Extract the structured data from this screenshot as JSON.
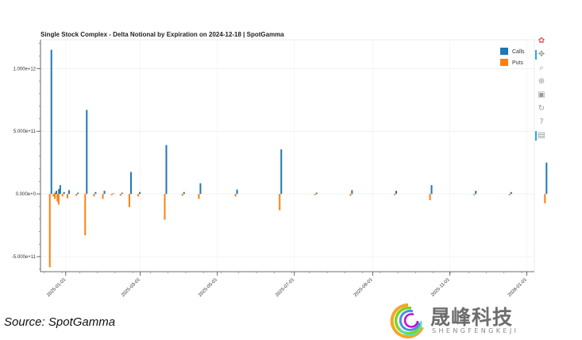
{
  "chart_data": {
    "type": "bar",
    "title": "Single Stock Complex - Delta Notional by Expiration on 2024-12-18 | SpotGamma",
    "xlabel": "",
    "ylabel": "",
    "ylim": [
      -620000000000,
      1230000000000
    ],
    "y_ticks": [
      -500000000000,
      0,
      500000000000,
      1000000000000
    ],
    "y_tick_labels": [
      "-5.000e+11",
      "0.000e+0",
      "5.000e+11",
      "1.000e+12"
    ],
    "x_range": [
      "2024-12-12",
      "2026-01-07"
    ],
    "x_ticks": [
      "2025-01-01",
      "2025-03-01",
      "2025-05-01",
      "2025-07-01",
      "2025-09-01",
      "2025-11-01",
      "2026-01-01"
    ],
    "grid": true,
    "legend_position": "top-right",
    "series": [
      {
        "name": "Calls",
        "color": "#1f77b4",
        "points": [
          {
            "x": "2024-12-20",
            "y": 1150000000000
          },
          {
            "x": "2024-12-23",
            "y": 10000000000
          },
          {
            "x": "2024-12-24",
            "y": 25000000000
          },
          {
            "x": "2024-12-26",
            "y": 40000000000
          },
          {
            "x": "2024-12-27",
            "y": 70000000000
          },
          {
            "x": "2024-12-30",
            "y": 15000000000
          },
          {
            "x": "2025-01-03",
            "y": 30000000000
          },
          {
            "x": "2025-01-10",
            "y": 10000000000
          },
          {
            "x": "2025-01-17",
            "y": 670000000000
          },
          {
            "x": "2025-01-24",
            "y": 15000000000
          },
          {
            "x": "2025-01-31",
            "y": 25000000000
          },
          {
            "x": "2025-02-07",
            "y": 5000000000
          },
          {
            "x": "2025-02-14",
            "y": 10000000000
          },
          {
            "x": "2025-02-21",
            "y": 175000000000
          },
          {
            "x": "2025-02-28",
            "y": 15000000000
          },
          {
            "x": "2025-03-21",
            "y": 390000000000
          },
          {
            "x": "2025-04-04",
            "y": 15000000000
          },
          {
            "x": "2025-04-17",
            "y": 85000000000
          },
          {
            "x": "2025-05-16",
            "y": 35000000000
          },
          {
            "x": "2025-06-20",
            "y": 355000000000
          },
          {
            "x": "2025-07-18",
            "y": 10000000000
          },
          {
            "x": "2025-08-15",
            "y": 30000000000
          },
          {
            "x": "2025-09-19",
            "y": 25000000000
          },
          {
            "x": "2025-10-17",
            "y": 70000000000
          },
          {
            "x": "2025-11-21",
            "y": 25000000000
          },
          {
            "x": "2025-12-19",
            "y": 15000000000
          },
          {
            "x": "2026-01-16",
            "y": 250000000000
          }
        ]
      },
      {
        "name": "Puts",
        "color": "#ff7f0e",
        "points": [
          {
            "x": "2024-12-20",
            "y": -585000000000
          },
          {
            "x": "2024-12-23",
            "y": -20000000000
          },
          {
            "x": "2024-12-24",
            "y": -40000000000
          },
          {
            "x": "2024-12-26",
            "y": -60000000000
          },
          {
            "x": "2024-12-27",
            "y": -85000000000
          },
          {
            "x": "2024-12-30",
            "y": -20000000000
          },
          {
            "x": "2025-01-03",
            "y": -35000000000
          },
          {
            "x": "2025-01-10",
            "y": -15000000000
          },
          {
            "x": "2025-01-17",
            "y": -330000000000
          },
          {
            "x": "2025-01-24",
            "y": -20000000000
          },
          {
            "x": "2025-01-31",
            "y": -40000000000
          },
          {
            "x": "2025-02-07",
            "y": -10000000000
          },
          {
            "x": "2025-02-14",
            "y": -15000000000
          },
          {
            "x": "2025-02-21",
            "y": -105000000000
          },
          {
            "x": "2025-02-28",
            "y": -20000000000
          },
          {
            "x": "2025-03-21",
            "y": -205000000000
          },
          {
            "x": "2025-04-04",
            "y": -15000000000
          },
          {
            "x": "2025-04-17",
            "y": -40000000000
          },
          {
            "x": "2025-05-16",
            "y": -20000000000
          },
          {
            "x": "2025-06-20",
            "y": -130000000000
          },
          {
            "x": "2025-07-18",
            "y": -10000000000
          },
          {
            "x": "2025-08-15",
            "y": -15000000000
          },
          {
            "x": "2025-09-19",
            "y": -10000000000
          },
          {
            "x": "2025-10-17",
            "y": -50000000000
          },
          {
            "x": "2025-11-21",
            "y": -10000000000
          },
          {
            "x": "2025-12-19",
            "y": -10000000000
          },
          {
            "x": "2026-01-16",
            "y": -75000000000
          }
        ]
      }
    ]
  },
  "toolbar": {
    "tools": [
      {
        "icon": "bokeh-logo-icon",
        "glyph": "✿",
        "active": false
      },
      {
        "icon": "pan-icon",
        "glyph": "✥",
        "active": true
      },
      {
        "icon": "box-zoom-icon",
        "glyph": "⌕",
        "active": false
      },
      {
        "icon": "wheel-zoom-icon",
        "glyph": "⊕",
        "active": false
      },
      {
        "icon": "save-icon",
        "glyph": "▣",
        "active": false
      },
      {
        "icon": "reset-icon",
        "glyph": "↻",
        "active": false
      },
      {
        "icon": "help-icon",
        "glyph": "?",
        "active": false
      },
      {
        "icon": "hover-icon",
        "glyph": "▤",
        "active": true
      }
    ]
  },
  "source_text": "Source: SpotGamma",
  "logo": {
    "name_cn": "晟峰科技",
    "name_en": "SHENGFENGKEJI"
  }
}
